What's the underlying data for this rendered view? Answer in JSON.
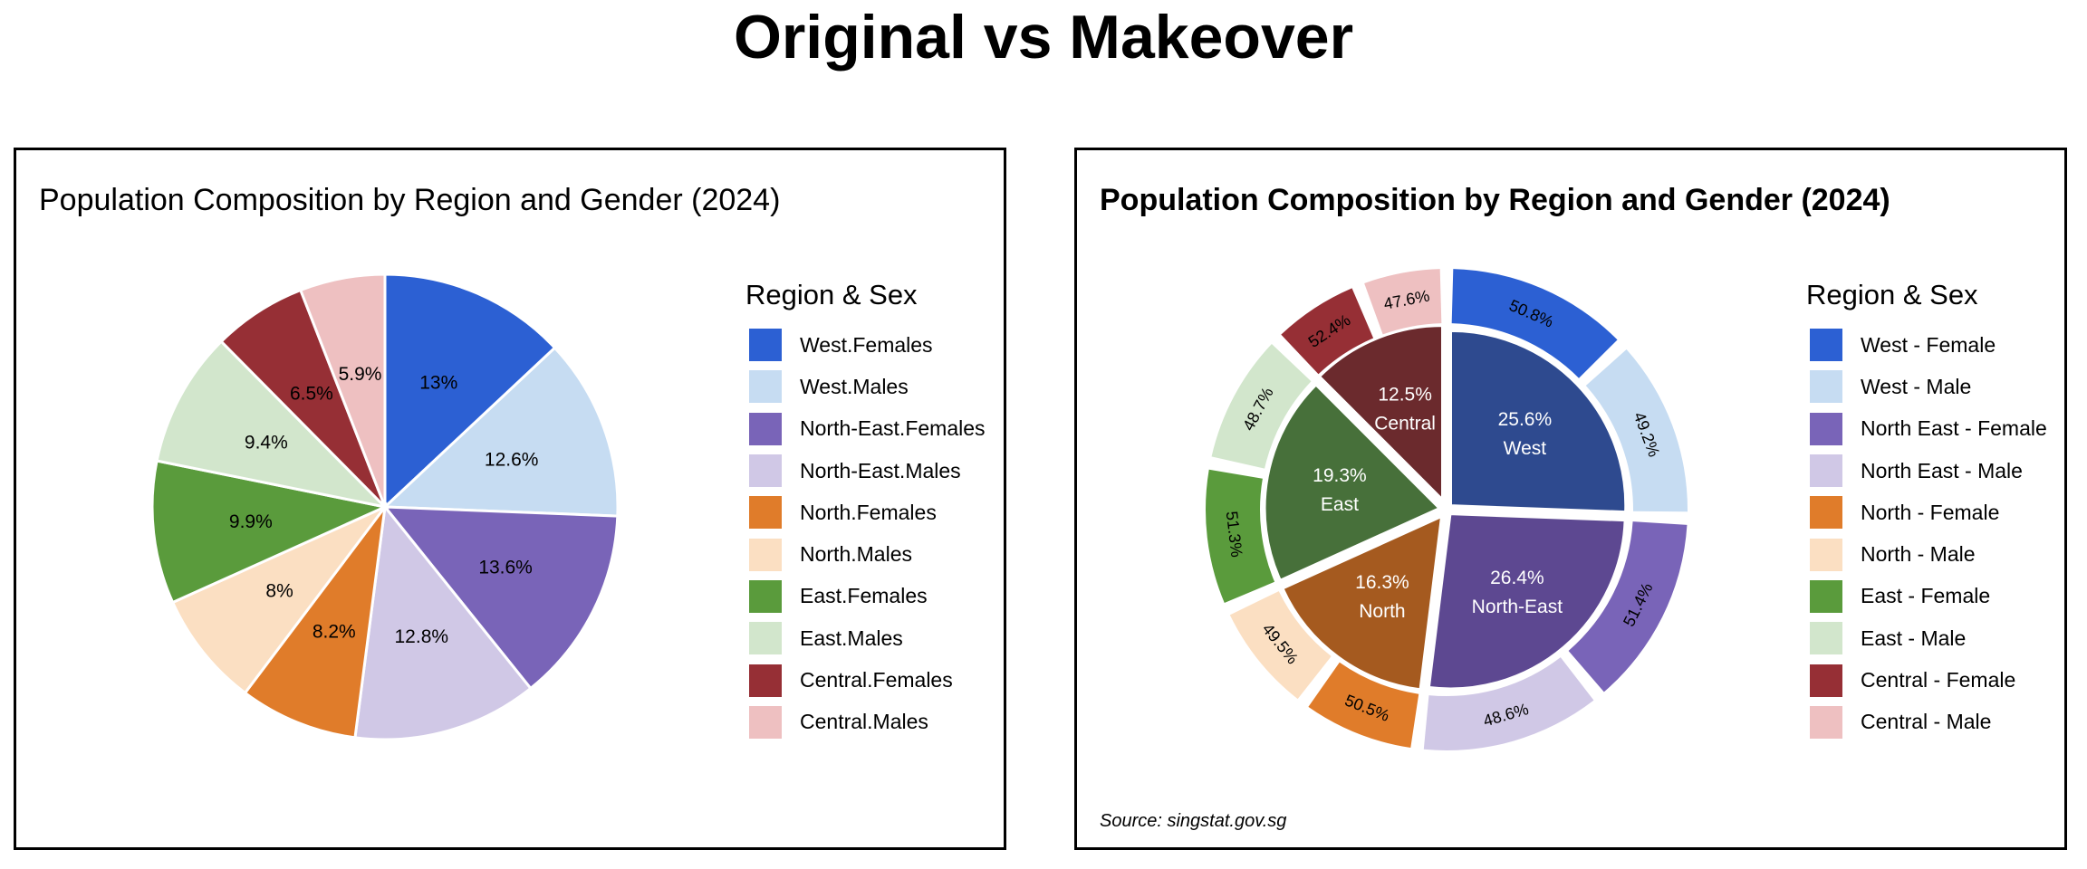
{
  "title": "Original vs Makeover",
  "chart_data": [
    {
      "type": "pie",
      "title": "Population Composition by Region and Gender (2024)",
      "legend_title": "Region & Sex",
      "legend_position": "right",
      "slices": [
        {
          "label": "West.Females",
          "value": 13.0,
          "value_label": "13%",
          "color": "#2c60d3"
        },
        {
          "label": "West.Males",
          "value": 12.6,
          "value_label": "12.6%",
          "color": "#c6dcf2"
        },
        {
          "label": "North-East.Females",
          "value": 13.6,
          "value_label": "13.6%",
          "color": "#7964b8"
        },
        {
          "label": "North-East.Males",
          "value": 12.8,
          "value_label": "12.8%",
          "color": "#d0c8e6"
        },
        {
          "label": "North.Females",
          "value": 8.2,
          "value_label": "8.2%",
          "color": "#e07c2a"
        },
        {
          "label": "North.Males",
          "value": 8.0,
          "value_label": "8%",
          "color": "#fbdfc2"
        },
        {
          "label": "East.Females",
          "value": 9.9,
          "value_label": "9.9%",
          "color": "#5a9b3c"
        },
        {
          "label": "East.Males",
          "value": 9.4,
          "value_label": "9.4%",
          "color": "#d2e6cc"
        },
        {
          "label": "Central.Females",
          "value": 6.5,
          "value_label": "6.5%",
          "color": "#962f35"
        },
        {
          "label": "Central.Males",
          "value": 5.9,
          "value_label": "5.9%",
          "color": "#eec0c1"
        }
      ]
    },
    {
      "type": "donut",
      "title": "Population Composition by Region and Gender (2024)",
      "legend_title": "Region & Sex",
      "legend_position": "right",
      "source": "Source: singstat.gov.sg",
      "inner": [
        {
          "region": "West",
          "value": 25.6,
          "value_label": "25.6%",
          "color": "#2e4a8f"
        },
        {
          "region": "North-East",
          "value": 26.4,
          "value_label": "26.4%",
          "color": "#5d4891"
        },
        {
          "region": "North",
          "value": 16.3,
          "value_label": "16.3%",
          "color": "#a55a1f"
        },
        {
          "region": "East",
          "value": 19.3,
          "value_label": "19.3%",
          "color": "#47703a"
        },
        {
          "region": "Central",
          "value": 12.5,
          "value_label": "12.5%",
          "color": "#6b2a2d"
        }
      ],
      "outer": [
        {
          "label": "West - Female",
          "value": 50.8,
          "value_label": "50.8%",
          "color": "#2c60d3"
        },
        {
          "label": "West - Male",
          "value": 49.2,
          "value_label": "49.2%",
          "color": "#c6dcf2"
        },
        {
          "label": "North East - Female",
          "value": 51.4,
          "value_label": "51.4%",
          "color": "#7964b8"
        },
        {
          "label": "North East - Male",
          "value": 48.6,
          "value_label": "48.6%",
          "color": "#d0c8e6"
        },
        {
          "label": "North - Female",
          "value": 50.5,
          "value_label": "50.5%",
          "color": "#e07c2a"
        },
        {
          "label": "North - Male",
          "value": 49.5,
          "value_label": "49.5%",
          "color": "#fbdfc2"
        },
        {
          "label": "East - Female",
          "value": 51.3,
          "value_label": "51.3%",
          "color": "#5a9b3c"
        },
        {
          "label": "East - Male",
          "value": 48.7,
          "value_label": "48.7%",
          "color": "#d2e6cc"
        },
        {
          "label": "Central - Female",
          "value": 52.4,
          "value_label": "52.4%",
          "color": "#962f35"
        },
        {
          "label": "Central - Male",
          "value": 47.6,
          "value_label": "47.6%",
          "color": "#eec0c1"
        }
      ]
    }
  ]
}
